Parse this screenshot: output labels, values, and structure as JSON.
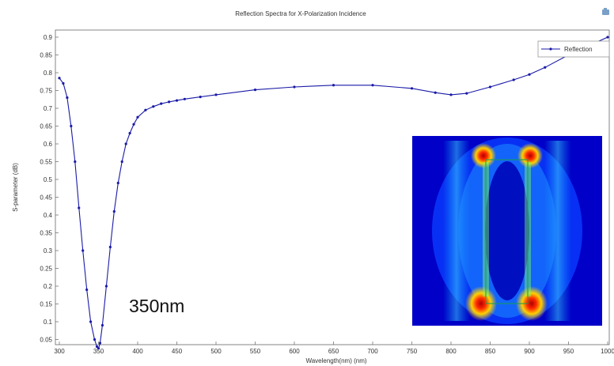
{
  "chart_data": {
    "type": "line",
    "title": "Reflection Spectra for X-Polarization Incidence",
    "xlabel": "Wavelength(nm) (nm)",
    "ylabel": "S-parameter (dB)",
    "xlim": [
      300,
      1000
    ],
    "ylim": [
      0.0,
      0.92
    ],
    "x_ticks": [
      300,
      350,
      400,
      450,
      500,
      550,
      600,
      650,
      700,
      750,
      800,
      850,
      900,
      950,
      1000
    ],
    "x_tick_labels": [
      "300",
      "350",
      "400",
      "450",
      "500",
      "550",
      "600",
      "650",
      "700",
      "750",
      "800",
      "850",
      "900",
      "950",
      "1000"
    ],
    "y_ticks": [
      0.05,
      0.1,
      0.15,
      0.2,
      0.25,
      0.3,
      0.35,
      0.4,
      0.45,
      0.5,
      0.55,
      0.6,
      0.65,
      0.7,
      0.75,
      0.8,
      0.85,
      0.9
    ],
    "y_tick_labels": [
      "0.05",
      "0.1",
      "0.15",
      "0.2",
      "0.25",
      "0.3",
      "0.35",
      "0.4",
      "0.45",
      "0.5",
      "0.55",
      "0.6",
      "0.65",
      "0.7",
      "0.75",
      "0.8",
      "0.85",
      "0.9"
    ],
    "grid": false,
    "legend_position": "top-right",
    "series": [
      {
        "name": "Reflection",
        "color": "#1a1aa8",
        "marker": "dot",
        "x": [
          300,
          305,
          310,
          315,
          320,
          325,
          330,
          335,
          340,
          345,
          348,
          350,
          352,
          355,
          360,
          365,
          370,
          375,
          380,
          385,
          390,
          395,
          400,
          410,
          420,
          430,
          440,
          450,
          460,
          480,
          500,
          550,
          600,
          650,
          700,
          750,
          780,
          800,
          820,
          850,
          880,
          900,
          920,
          950,
          980,
          1000
        ],
        "y": [
          0.785,
          0.77,
          0.73,
          0.65,
          0.55,
          0.42,
          0.3,
          0.19,
          0.1,
          0.05,
          0.03,
          0.025,
          0.04,
          0.09,
          0.2,
          0.31,
          0.41,
          0.49,
          0.55,
          0.6,
          0.63,
          0.655,
          0.675,
          0.695,
          0.705,
          0.713,
          0.718,
          0.722,
          0.726,
          0.732,
          0.738,
          0.752,
          0.76,
          0.765,
          0.765,
          0.756,
          0.744,
          0.738,
          0.742,
          0.76,
          0.78,
          0.795,
          0.815,
          0.85,
          0.88,
          0.9
        ]
      }
    ],
    "annotations": [
      {
        "text": "350nm"
      }
    ]
  },
  "toolbar": {
    "corner_icon": "camera-icon"
  },
  "inset": {
    "description_icon": "field-map-image"
  }
}
